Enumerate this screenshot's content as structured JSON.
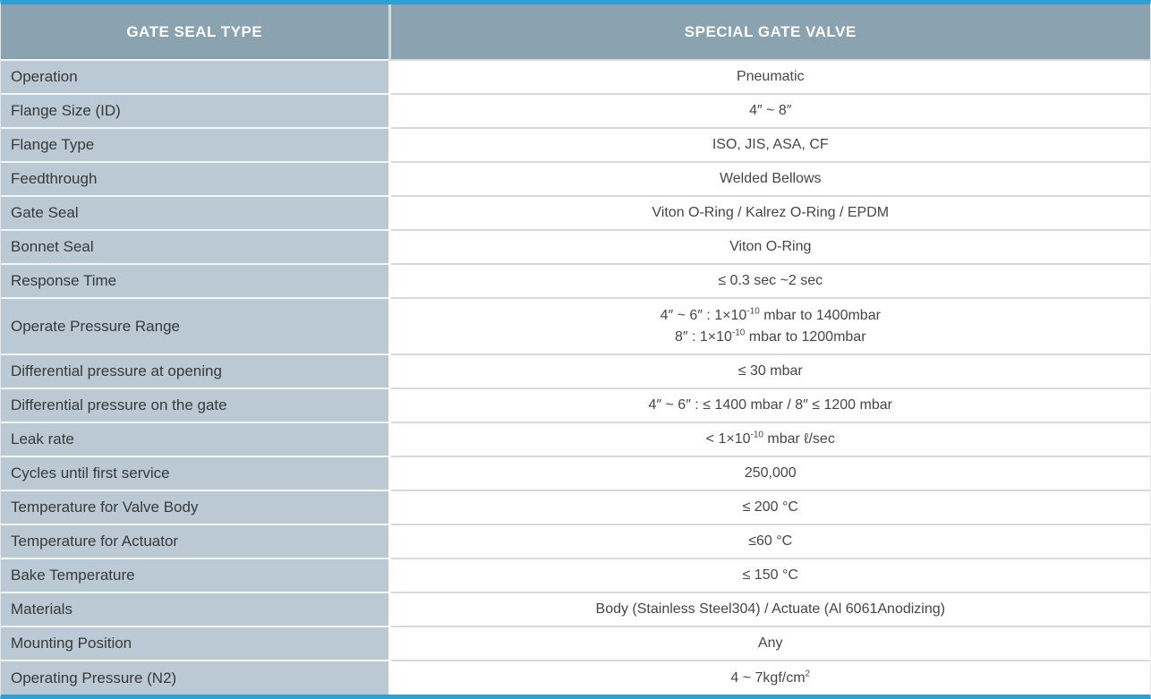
{
  "colors": {
    "accent_blue": "#2f9fd4",
    "header_bg": "#8ba2b0",
    "header_text": "#ffffff",
    "label_cell_bg": "#bac9d3",
    "label_text": "#373a3c",
    "value_text": "#444648",
    "label_separator": "#f4f7f8",
    "value_separator": "#d9d9d9",
    "header_divider": "#cfdae0"
  },
  "table": {
    "header": [
      {
        "label": "GATE SEAL TYPE"
      },
      {
        "label": "SPECIAL GATE VALVE"
      }
    ],
    "rows": [
      {
        "label": "Operation",
        "lines": [
          [
            {
              "t": "Pneumatic"
            }
          ]
        ]
      },
      {
        "label": "Flange Size (ID)",
        "lines": [
          [
            {
              "t": "4″ ~ 8″"
            }
          ]
        ]
      },
      {
        "label": "Flange Type",
        "lines": [
          [
            {
              "t": "ISO, JIS, ASA, CF"
            }
          ]
        ]
      },
      {
        "label": "Feedthrough",
        "lines": [
          [
            {
              "t": "Welded Bellows"
            }
          ]
        ]
      },
      {
        "label": "Gate Seal",
        "lines": [
          [
            {
              "t": "Viton O-Ring / Kalrez O-Ring / EPDM"
            }
          ]
        ]
      },
      {
        "label": "Bonnet Seal",
        "lines": [
          [
            {
              "t": "Viton O-Ring"
            }
          ]
        ]
      },
      {
        "label": "Response Time",
        "lines": [
          [
            {
              "t": "≤ 0.3 sec ~2 sec"
            }
          ]
        ]
      },
      {
        "label": "Operate Pressure Range",
        "tall": true,
        "lines": [
          [
            {
              "t": "4″ ~ 6″ : 1×10"
            },
            {
              "t": "-10",
              "sup": true
            },
            {
              "t": " mbar to 1400mbar"
            }
          ],
          [
            {
              "t": "8″ : 1×10"
            },
            {
              "t": "-10",
              "sup": true
            },
            {
              "t": " mbar to 1200mbar"
            }
          ]
        ]
      },
      {
        "label": "Differential pressure at opening",
        "lines": [
          [
            {
              "t": "≤ 30 mbar"
            }
          ]
        ]
      },
      {
        "label": "Differential pressure on the gate",
        "lines": [
          [
            {
              "t": "4″ ~ 6″ : ≤ 1400 mbar / 8″ ≤ 1200 mbar"
            }
          ]
        ]
      },
      {
        "label": "Leak rate",
        "lines": [
          [
            {
              "t": "< 1×10"
            },
            {
              "t": "-10",
              "sup": true
            },
            {
              "t": " mbar ℓ/sec"
            }
          ]
        ]
      },
      {
        "label": "Cycles until first service",
        "lines": [
          [
            {
              "t": "250,000"
            }
          ]
        ]
      },
      {
        "label": "Temperature for Valve Body",
        "lines": [
          [
            {
              "t": "≤ 200 °C"
            }
          ]
        ]
      },
      {
        "label": "Temperature for Actuator",
        "lines": [
          [
            {
              "t": "≤60 °C"
            }
          ]
        ]
      },
      {
        "label": "Bake Temperature",
        "lines": [
          [
            {
              "t": "≤ 150 °C"
            }
          ]
        ]
      },
      {
        "label": "Materials",
        "lines": [
          [
            {
              "t": "Body (Stainless Steel304) / Actuate (Al 6061Anodizing)"
            }
          ]
        ]
      },
      {
        "label": "Mounting Position",
        "lines": [
          [
            {
              "t": "Any"
            }
          ]
        ]
      },
      {
        "label": "Operating Pressure (N2)",
        "lines": [
          [
            {
              "t": "4 ~ 7kgf/cm"
            },
            {
              "t": "2",
              "sup": true
            }
          ]
        ]
      }
    ]
  }
}
